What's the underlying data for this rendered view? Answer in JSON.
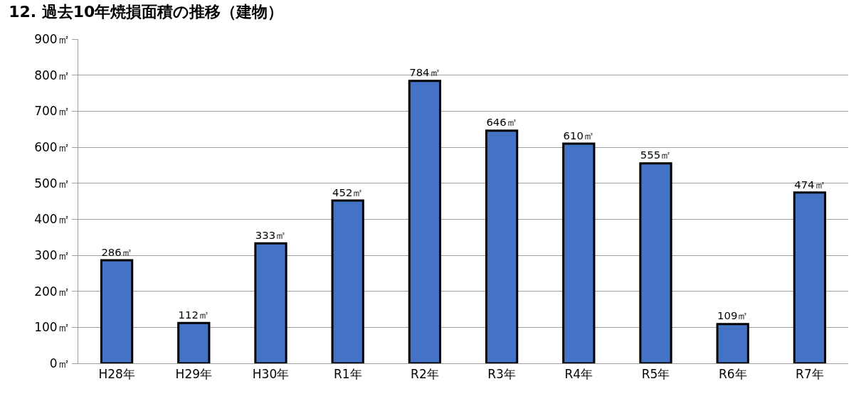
{
  "chart_data": {
    "type": "bar",
    "title": "12. 過去10年焼損面積の推移（建物）",
    "categories": [
      "H28年",
      "H29年",
      "H30年",
      "R1年",
      "R2年",
      "R3年",
      "R4年",
      "R5年",
      "R6年",
      "R7年"
    ],
    "values": [
      286,
      112,
      333,
      452,
      784,
      646,
      610,
      555,
      109,
      474
    ],
    "value_labels": [
      "286㎡",
      "112㎡",
      "333㎡",
      "452㎡",
      "784㎡",
      "646㎡",
      "610㎡",
      "555㎡",
      "109㎡",
      "474㎡"
    ],
    "color": "#4472c4",
    "ylim": [
      0,
      900
    ],
    "yticks": [
      {
        "value": 0,
        "label": "0㎡"
      },
      {
        "value": 100,
        "label": "100㎡"
      },
      {
        "value": 200,
        "label": "200㎡"
      },
      {
        "value": 300,
        "label": "300㎡"
      },
      {
        "value": 400,
        "label": "400㎡"
      },
      {
        "value": 500,
        "label": "500㎡"
      },
      {
        "value": 600,
        "label": "600㎡"
      },
      {
        "value": 700,
        "label": "700㎡"
      },
      {
        "value": 800,
        "label": "800㎡"
      },
      {
        "value": 900,
        "label": "900㎡"
      }
    ],
    "grid": "y",
    "legend": false
  }
}
